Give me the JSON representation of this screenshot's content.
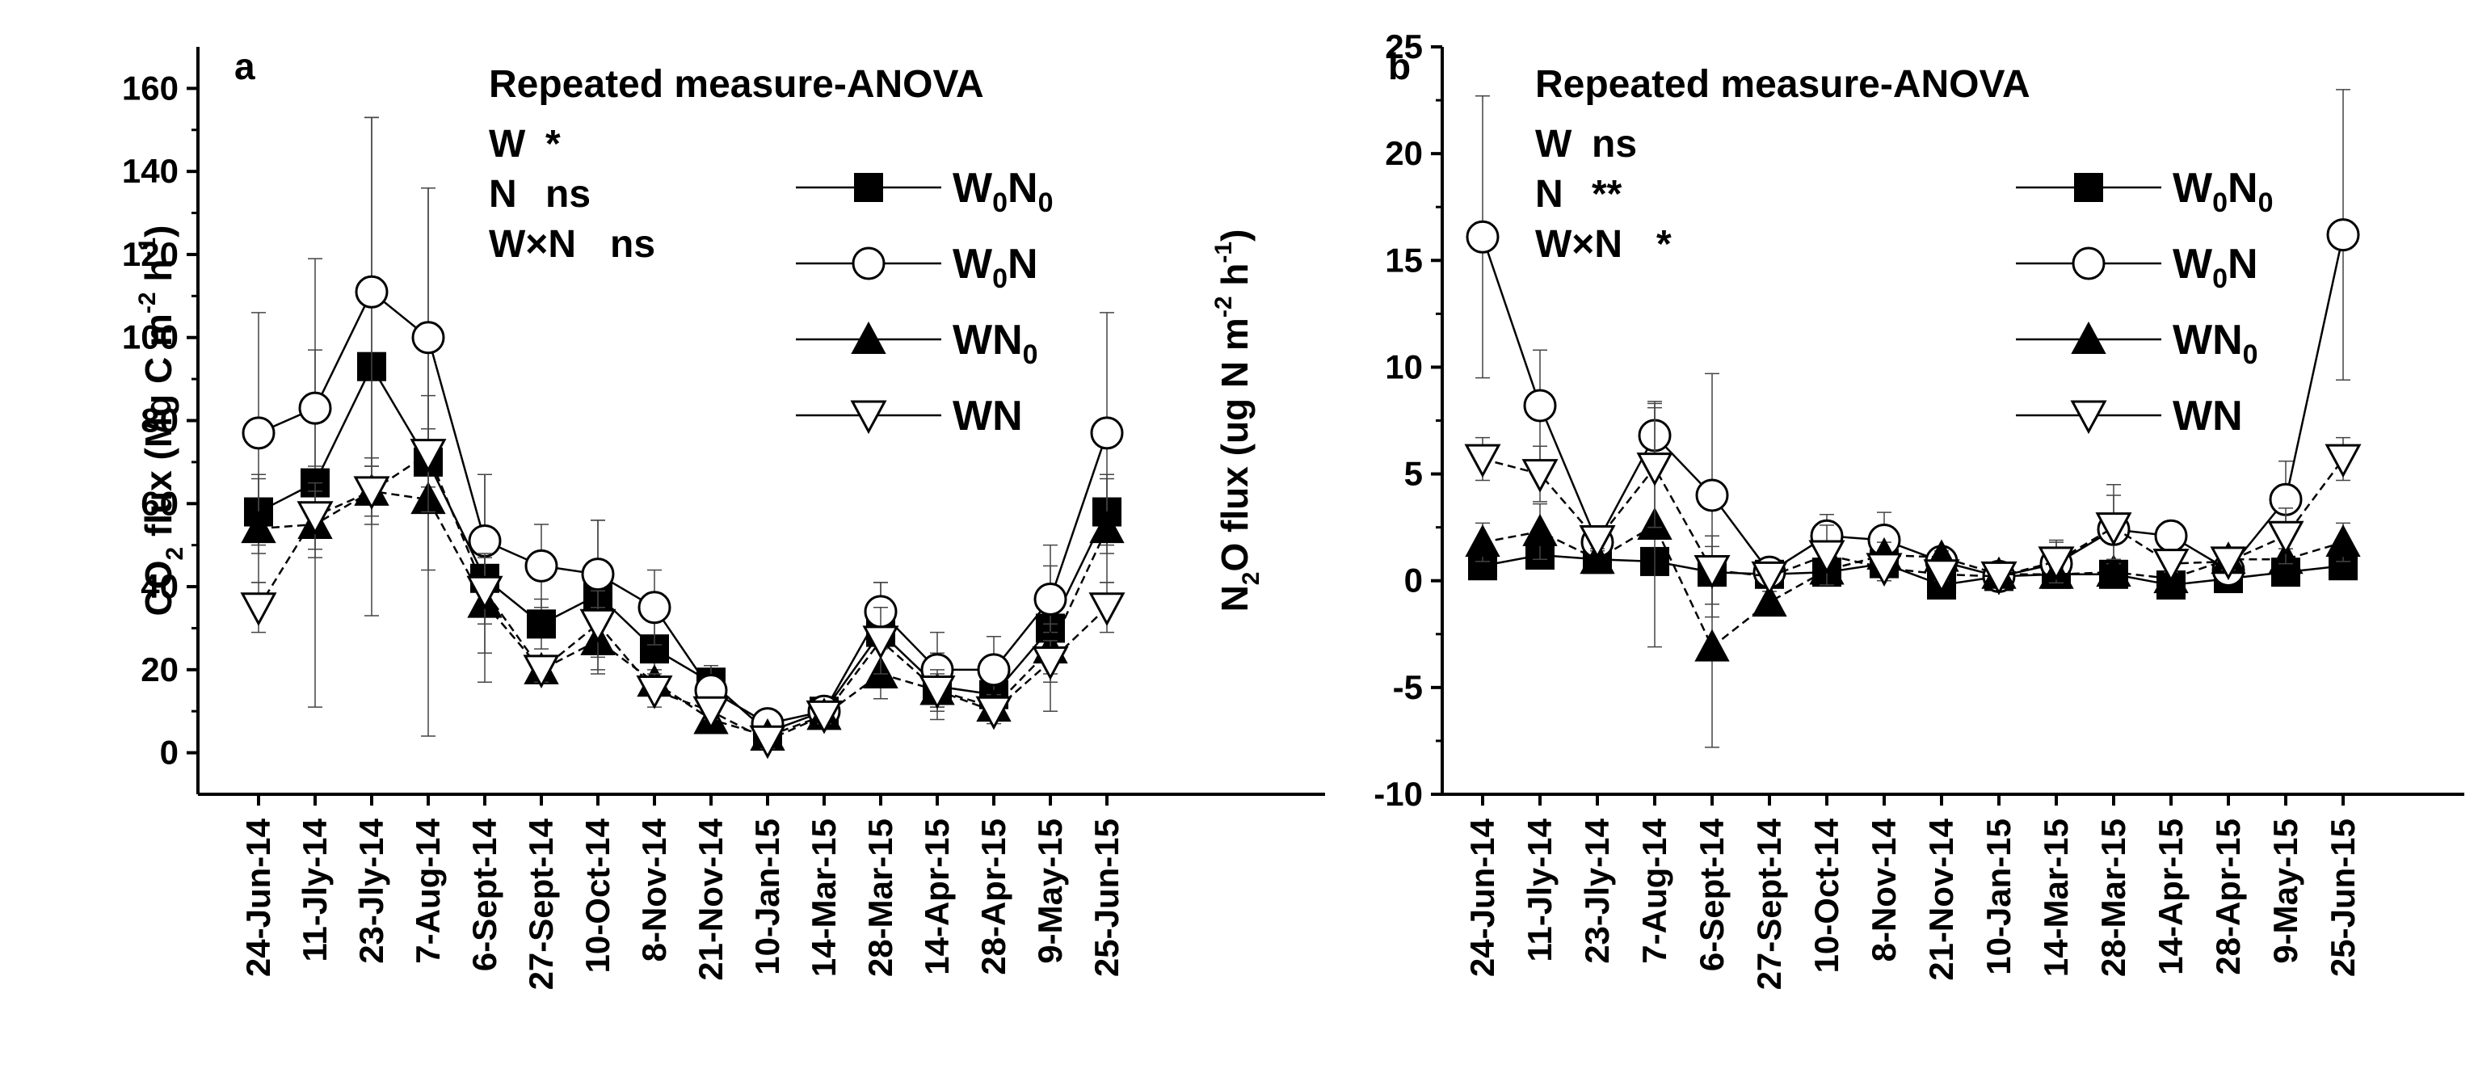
{
  "chart_data": [
    {
      "type": "line",
      "panel": "a",
      "ylabel": {
        "main": "CO",
        "sub": "2",
        "rest": " flux (Mg C m",
        "sup1": "-2",
        "mid": " h",
        "sup2": "-1",
        "close": ")"
      },
      "ylim": [
        -10,
        170
      ],
      "yticks": [
        0,
        20,
        40,
        60,
        80,
        100,
        120,
        140,
        160
      ],
      "categories": [
        "24-Jun-14",
        "11-Jly-14",
        "23-Jly-14",
        "7-Aug-14",
        "6-Sept-14",
        "27-Sept-14",
        "10-Oct-14",
        "8-Nov-14",
        "21-Nov-14",
        "10-Jan-15",
        "14-Mar-15",
        "28-Mar-15",
        "14-Apr-15",
        "28-Apr-15",
        "9-May-15",
        "25-Jun-15"
      ],
      "anova": {
        "title": "Repeated measure-ANOVA",
        "rows": [
          {
            "label": "W",
            "value": "*"
          },
          {
            "label": "N",
            "value": "ns"
          },
          {
            "label": "W×N",
            "value": "ns"
          }
        ]
      },
      "series": [
        {
          "name": "W0N0",
          "label": "W",
          "sub": "0",
          "label2": "N",
          "sub2": "0",
          "marker": "square",
          "dash": "solid",
          "values": [
            58,
            65,
            93,
            70,
            42,
            31,
            38,
            25,
            17,
            5,
            10,
            29,
            16,
            14,
            30,
            58
          ],
          "err": [
            8,
            54,
            60,
            66,
            25,
            6,
            18,
            8,
            4,
            3,
            2,
            12,
            8,
            6,
            20,
            8
          ]
        },
        {
          "name": "W0N",
          "label": "W",
          "sub": "0",
          "label2": "N",
          "sub2": "",
          "marker": "circle",
          "dash": "solid",
          "values": [
            77,
            83,
            111,
            100,
            51,
            45,
            43,
            35,
            15,
            7,
            10,
            34,
            20,
            20,
            37,
            77
          ],
          "err": [
            29,
            14,
            42,
            36,
            16,
            10,
            13,
            9,
            6,
            3,
            2,
            7,
            9,
            8,
            8,
            29
          ]
        },
        {
          "name": "WN0",
          "label": "W",
          "sub": "",
          "label2": "N",
          "sub2": "0",
          "marker": "triangle-up",
          "dash": "dash",
          "values": [
            54,
            55,
            63,
            61,
            36,
            20,
            27,
            17,
            8,
            4,
            9,
            19,
            15,
            11,
            25,
            54
          ],
          "err": [
            13,
            8,
            8,
            17,
            12,
            3,
            8,
            3,
            2,
            2,
            2,
            6,
            5,
            3,
            6,
            13
          ]
        },
        {
          "name": "WN",
          "label": "W",
          "sub": "",
          "label2": "N",
          "sub2": "",
          "marker": "triangle-down",
          "dash": "dash",
          "values": [
            35,
            57,
            63,
            72,
            39,
            20,
            31,
            15,
            10,
            3,
            9,
            27,
            15,
            10,
            22,
            35
          ],
          "err": [
            6,
            8,
            6,
            14,
            8,
            3,
            8,
            4,
            2,
            2,
            2,
            8,
            4,
            3,
            5,
            6
          ]
        }
      ]
    },
    {
      "type": "line",
      "panel": "b",
      "ylabel": {
        "main": "N",
        "sub": "2",
        "rest": "O flux (ug N m",
        "sup1": "-2",
        "mid": " h",
        "sup2": "-1",
        "close": ")"
      },
      "ylim": [
        -10,
        25
      ],
      "yticks": [
        -10,
        -5,
        0,
        5,
        10,
        15,
        20,
        25
      ],
      "categories": [
        "24-Jun-14",
        "11-Jly-14",
        "23-Jly-14",
        "7-Aug-14",
        "6-Sept-14",
        "27-Sept-14",
        "10-Oct-14",
        "8-Nov-14",
        "21-Nov-14",
        "10-Jan-15",
        "14-Mar-15",
        "28-Mar-15",
        "14-Apr-15",
        "28-Apr-15",
        "9-May-15",
        "25-Jun-15"
      ],
      "anova": {
        "title": "Repeated measure-ANOVA",
        "rows": [
          {
            "label": "W",
            "value": "ns"
          },
          {
            "label": "N",
            "value": "**"
          },
          {
            "label": "W×N",
            "value": "*"
          }
        ]
      },
      "series": [
        {
          "name": "W0N0",
          "label": "W",
          "sub": "0",
          "label2": "N",
          "sub2": "0",
          "marker": "square",
          "dash": "solid",
          "values": [
            0.7,
            1.2,
            1.0,
            0.9,
            0.4,
            0.3,
            0.4,
            0.8,
            -0.2,
            0.2,
            0.3,
            0.3,
            -0.2,
            0.1,
            0.4,
            0.7
          ],
          "err": [
            0.4,
            0.4,
            0.5,
            0.6,
            0.5,
            0.2,
            0.4,
            0.6,
            0.3,
            0.2,
            0.3,
            0.4,
            0.3,
            0.2,
            0.3,
            0.4
          ]
        },
        {
          "name": "W0N",
          "label": "W",
          "sub": "0",
          "label2": "N",
          "sub2": "",
          "marker": "circle",
          "dash": "solid",
          "values": [
            16.1,
            8.2,
            1.8,
            6.8,
            4.0,
            0.4,
            2.1,
            1.9,
            0.9,
            0.2,
            0.8,
            2.4,
            2.1,
            0.5,
            3.8,
            16.2
          ],
          "err": [
            6.6,
            2.6,
            0.6,
            1.6,
            5.7,
            0.3,
            1.0,
            1.3,
            0.4,
            0.2,
            1.0,
            2.1,
            0.5,
            0.4,
            1.8,
            6.8
          ]
        },
        {
          "name": "WN0",
          "label": "W",
          "sub": "",
          "label2": "N",
          "sub2": "0",
          "marker": "triangle-up",
          "dash": "dash",
          "values": [
            1.8,
            2.3,
            1.0,
            2.6,
            -3.1,
            -1.0,
            0.5,
            1.2,
            1.1,
            0.3,
            0.3,
            0.4,
            0.1,
            1.0,
            1.0,
            1.8
          ],
          "err": [
            0.9,
            1.3,
            0.4,
            5.7,
            4.7,
            0.5,
            0.5,
            0.6,
            0.3,
            0.2,
            0.3,
            0.4,
            0.3,
            0.4,
            0.5,
            0.9
          ]
        },
        {
          "name": "WN",
          "label": "W",
          "sub": "",
          "label2": "N",
          "sub2": "",
          "marker": "triangle-down",
          "dash": "dash",
          "values": [
            5.7,
            5.0,
            1.9,
            5.3,
            0.5,
            0.2,
            1.2,
            0.6,
            0.3,
            0.2,
            0.9,
            2.5,
            0.8,
            0.9,
            2.1,
            5.7
          ],
          "err": [
            1.0,
            1.3,
            0.4,
            2.8,
            1.6,
            0.2,
            1.4,
            0.6,
            0.3,
            0.2,
            1.0,
            1.5,
            0.4,
            0.4,
            1.3,
            1.0
          ]
        }
      ]
    }
  ]
}
